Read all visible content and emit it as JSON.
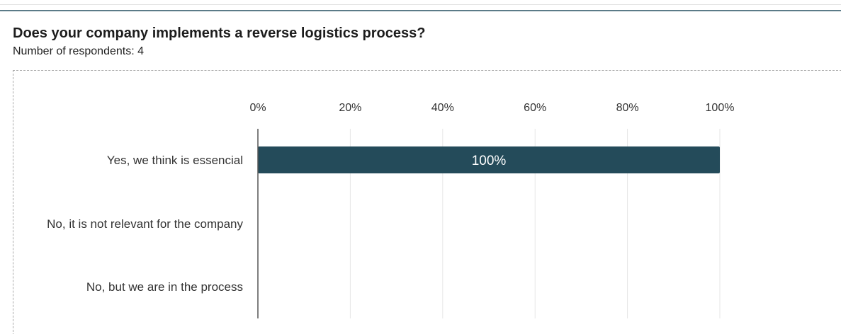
{
  "question": {
    "title": "Does your company implements a reverse logistics process?",
    "respondents": "Number of respondents: 4"
  },
  "colors": {
    "bar": "#244b5a",
    "gridline": "#e6e6e6",
    "axis": "#555555",
    "accent_rule": "#5b7b88"
  },
  "chart_data": {
    "type": "bar",
    "orientation": "horizontal",
    "categories": [
      "Yes, we think is essencial",
      "No, it is not relevant for the company",
      "No, but we are in the process"
    ],
    "values": [
      100,
      0,
      0
    ],
    "data_labels": [
      "100%",
      "",
      ""
    ],
    "xticks": [
      "0%",
      "20%",
      "40%",
      "60%",
      "80%",
      "100%"
    ],
    "xlim": [
      0,
      100
    ],
    "xtick_position": "top",
    "grid": true,
    "legend": "none",
    "title": "",
    "xlabel": "",
    "ylabel": ""
  }
}
